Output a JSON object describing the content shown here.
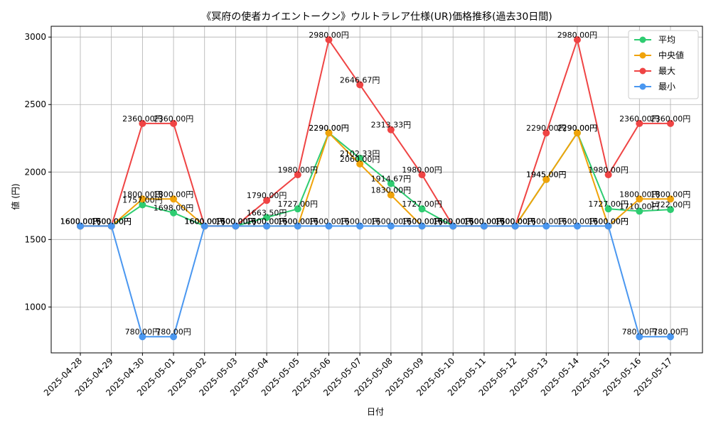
{
  "chart_data": {
    "type": "line",
    "title": "《冥府の使者カイエントークン》ウルトラレア仕様(UR)価格推移(過去30日間)",
    "xlabel": "日付",
    "ylabel": "値 (円)",
    "ylim": [
      660,
      3080
    ],
    "yticks": [
      1000,
      1500,
      2000,
      2500,
      3000
    ],
    "grid": true,
    "legend_position": "top-right",
    "categories": [
      "2025-04-28",
      "2025-04-29",
      "2025-04-30",
      "2025-05-01",
      "2025-05-02",
      "2025-05-03",
      "2025-05-04",
      "2025-05-05",
      "2025-05-06",
      "2025-05-07",
      "2025-05-08",
      "2025-05-09",
      "2025-05-10",
      "2025-05-11",
      "2025-05-12",
      "2025-05-13",
      "2025-05-14",
      "2025-05-15",
      "2025-05-16",
      "2025-05-17"
    ],
    "series": [
      {
        "name": "平均",
        "color": "#2ecc71",
        "values": [
          1600,
          1600,
          1757,
          1698,
          1600,
          1600,
          1663.5,
          1727,
          2290,
          2102.33,
          1914.67,
          1727,
          1600,
          1600,
          1600,
          1945,
          2290,
          1727,
          1710,
          1722
        ],
        "labels": [
          "1600.00円",
          "1600.00円",
          "1757.00円",
          "1698.00円",
          "1600.00円",
          "1600.00円",
          "1663.50円",
          "1727.00円",
          "2290.00円",
          "2102.33円",
          "1914.67円",
          "1727.00円",
          "1600.00円",
          "1600.00円",
          "1600.00円",
          "1945.00円",
          "2290.00円",
          "1727.00円",
          "1710.00円",
          "1722.00円"
        ]
      },
      {
        "name": "中央値",
        "color": "#f0a30a",
        "values": [
          1600,
          1600,
          1800,
          1800,
          1600,
          1600,
          1600,
          1600,
          2290,
          2060,
          1830,
          1600,
          1600,
          1600,
          1600,
          1945,
          2290,
          1600,
          1800,
          1800
        ],
        "labels": [
          "1600.00円",
          "1600.00円",
          "1800.00円",
          "1800.00円",
          "1600.00円",
          "1600.00円",
          "1600.00円",
          "1600.00円",
          "2290.00円",
          "2060.00円",
          "1830.00円",
          "1600.00円",
          "1600.00円",
          "1600.00円",
          "1600.00円",
          "1945.00円",
          "2290.00円",
          "1600.00円",
          "1800.00円",
          "1800.00円"
        ]
      },
      {
        "name": "最大",
        "color": "#ef4444",
        "values": [
          1600,
          1600,
          2360,
          2360,
          1600,
          1600,
          1790,
          1980,
          2980,
          2646.67,
          2313.33,
          1980,
          1600,
          1600,
          1600,
          2290,
          2980,
          1980,
          2360,
          2360
        ],
        "labels": [
          "1600.00円",
          "1600.00円",
          "2360.00円",
          "2360.00円",
          "1600.00円",
          "1600.00円",
          "1790.00円",
          "1980.00円",
          "2980.00円",
          "2646.67円",
          "2313.33円",
          "1980.00円",
          "1600.00円",
          "1600.00円",
          "1600.00円",
          "2290.00円",
          "2980.00円",
          "1980.00円",
          "2360.00円",
          "2360.00円"
        ]
      },
      {
        "name": "最小",
        "color": "#4a97f0",
        "values": [
          1600,
          1600,
          780,
          780,
          1600,
          1600,
          1600,
          1600,
          1600,
          1600,
          1600,
          1600,
          1600,
          1600,
          1600,
          1600,
          1600,
          1600,
          780,
          780
        ],
        "labels": [
          "1600.00円",
          "1600.00円",
          "780.00円",
          "780.00円",
          "1600.00円",
          "1600.00円",
          "1600.00円",
          "1600.00円",
          "1600.00円",
          "1600.00円",
          "1600.00円",
          "1600.00円",
          "1600.00円",
          "1600.00円",
          "1600.00円",
          "1600.00円",
          "1600.00円",
          "1600.00円",
          "780.00円",
          "780.00円"
        ]
      }
    ]
  }
}
